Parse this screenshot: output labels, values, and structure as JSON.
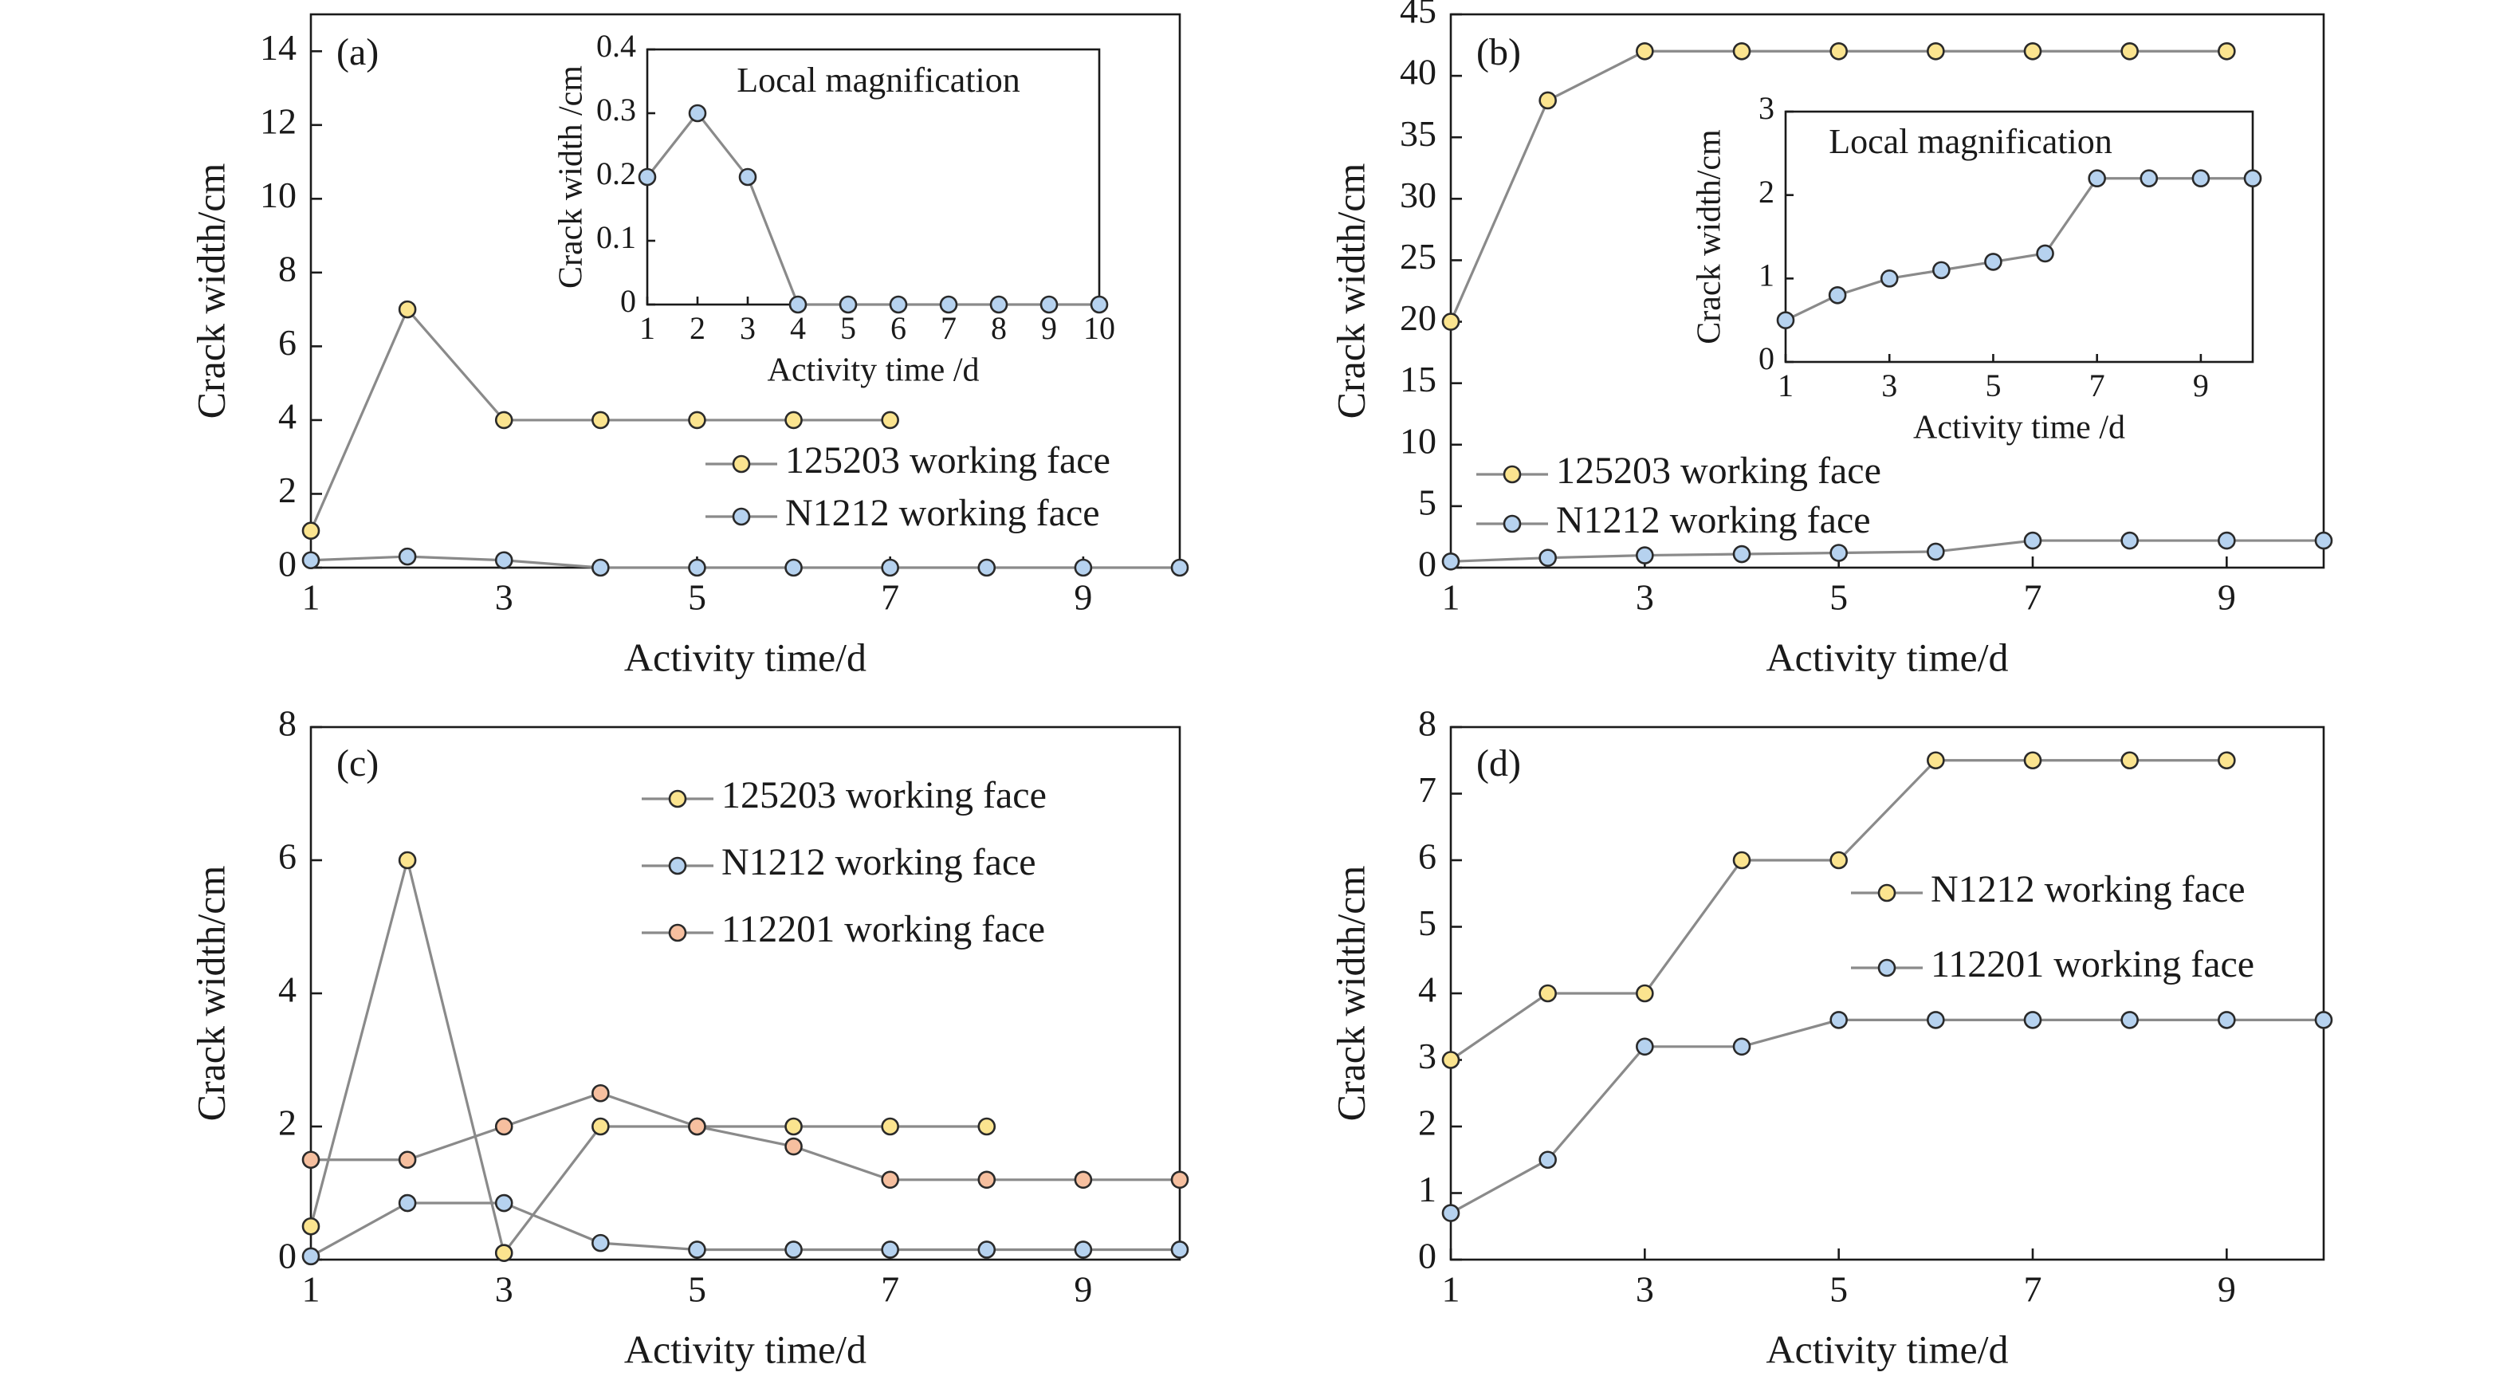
{
  "colors": {
    "yellow_marker": "#fbe48f",
    "blue_marker": "#b6d2ef",
    "orange_marker": "#f6bf9f",
    "line": "#8a8a8a",
    "axis": "#1a1a1a"
  },
  "chart_data": [
    {
      "panel": "(a)",
      "type": "line",
      "xlabel": "Activity time/d",
      "ylabel": "Crack width/cm",
      "xlim": [
        1,
        10
      ],
      "ylim": [
        0,
        15
      ],
      "xticks": [
        1,
        3,
        5,
        7,
        9
      ],
      "yticks": [
        0,
        2,
        4,
        6,
        8,
        10,
        12,
        14
      ],
      "legend_position": "lower-right",
      "series": [
        {
          "name": "125203 working face",
          "marker_color": "yellow",
          "x": [
            1,
            2,
            3,
            4,
            5,
            6,
            7
          ],
          "y": [
            1.0,
            7.0,
            4.0,
            4.0,
            4.0,
            4.0,
            4.0
          ]
        },
        {
          "name": "N1212 working face",
          "marker_color": "blue",
          "x": [
            1,
            2,
            3,
            4,
            5,
            6,
            7,
            8,
            9,
            10
          ],
          "y": [
            0.2,
            0.3,
            0.2,
            0,
            0,
            0,
            0,
            0,
            0,
            0
          ]
        }
      ],
      "inset": {
        "title": "Local magnification",
        "xlabel": "Activity time /d",
        "ylabel": "Crack width /cm",
        "xlim": [
          1,
          10
        ],
        "ylim": [
          0,
          0.4
        ],
        "xticks": [
          1,
          2,
          3,
          4,
          5,
          6,
          7,
          8,
          9,
          10
        ],
        "yticks": [
          0,
          0.1,
          0.2,
          0.3,
          0.4
        ],
        "series": [
          {
            "marker_color": "blue",
            "x": [
              1,
              2,
              3,
              4,
              5,
              6,
              7,
              8,
              9,
              10
            ],
            "y": [
              0.2,
              0.3,
              0.2,
              0,
              0,
              0,
              0,
              0,
              0,
              0
            ]
          }
        ]
      }
    },
    {
      "panel": "(b)",
      "type": "line",
      "xlabel": "Activity time/d",
      "ylabel": "Crack width/cm",
      "xlim": [
        1,
        10
      ],
      "ylim": [
        0,
        45
      ],
      "xticks": [
        1,
        3,
        5,
        7,
        9
      ],
      "yticks": [
        0,
        5,
        10,
        15,
        20,
        25,
        30,
        35,
        40,
        45
      ],
      "legend_position": "lower-left",
      "series": [
        {
          "name": "125203 working face",
          "marker_color": "yellow",
          "x": [
            1,
            2,
            3,
            4,
            5,
            6,
            7,
            8,
            9
          ],
          "y": [
            20,
            38,
            42,
            42,
            42,
            42,
            42,
            42,
            42
          ]
        },
        {
          "name": "N1212 working face",
          "marker_color": "blue",
          "x": [
            1,
            2,
            3,
            4,
            5,
            6,
            7,
            8,
            9,
            10
          ],
          "y": [
            0.5,
            0.8,
            1.0,
            1.1,
            1.2,
            1.3,
            2.2,
            2.2,
            2.2,
            2.2
          ]
        }
      ],
      "inset": {
        "title": "Local magnification",
        "xlabel": "Activity time /d",
        "ylabel": "Crack width/cm",
        "xlim": [
          1,
          10
        ],
        "ylim": [
          0,
          3
        ],
        "xticks": [
          1,
          3,
          5,
          7,
          9
        ],
        "yticks": [
          0,
          1,
          2,
          3
        ],
        "series": [
          {
            "marker_color": "blue",
            "x": [
              1,
              2,
              3,
              4,
              5,
              6,
              7,
              8,
              9,
              10
            ],
            "y": [
              0.5,
              0.8,
              1.0,
              1.1,
              1.2,
              1.3,
              2.2,
              2.2,
              2.2,
              2.2
            ]
          }
        ]
      }
    },
    {
      "panel": "(c)",
      "type": "line",
      "xlabel": "Activity time/d",
      "ylabel": "Crack width/cm",
      "xlim": [
        1,
        10
      ],
      "ylim": [
        0,
        8
      ],
      "xticks": [
        1,
        3,
        5,
        7,
        9
      ],
      "yticks": [
        0,
        2,
        4,
        6,
        8
      ],
      "legend_position": "top-right",
      "series": [
        {
          "name": "125203 working face",
          "marker_color": "yellow",
          "x": [
            1,
            2,
            3,
            4,
            5,
            6,
            7,
            8
          ],
          "y": [
            0.5,
            6.0,
            0.1,
            2.0,
            2.0,
            2.0,
            2.0,
            2.0
          ]
        },
        {
          "name": "N1212 working face",
          "marker_color": "blue",
          "x": [
            1,
            2,
            3,
            4,
            5,
            6,
            7,
            8,
            9,
            10
          ],
          "y": [
            0.05,
            0.85,
            0.85,
            0.25,
            0.15,
            0.15,
            0.15,
            0.15,
            0.15,
            0.15
          ]
        },
        {
          "name": "112201 working face",
          "marker_color": "orange",
          "x": [
            1,
            2,
            3,
            4,
            5,
            6,
            7,
            8,
            9,
            10
          ],
          "y": [
            1.5,
            1.5,
            2.0,
            2.5,
            2.0,
            1.7,
            1.2,
            1.2,
            1.2,
            1.2
          ]
        }
      ]
    },
    {
      "panel": "(d)",
      "type": "line",
      "xlabel": "Activity time/d",
      "ylabel": "Crack width/cm",
      "xlim": [
        1,
        10
      ],
      "ylim": [
        0,
        8
      ],
      "xticks": [
        1,
        3,
        5,
        7,
        9
      ],
      "yticks": [
        0,
        1,
        2,
        3,
        4,
        5,
        6,
        7,
        8
      ],
      "legend_position": "right",
      "series": [
        {
          "name": "N1212 working face",
          "marker_color": "yellow",
          "x": [
            1,
            2,
            3,
            4,
            5,
            6,
            7,
            8,
            9
          ],
          "y": [
            3.0,
            4.0,
            4.0,
            6.0,
            6.0,
            7.5,
            7.5,
            7.5,
            7.5
          ]
        },
        {
          "name": "112201 working face",
          "marker_color": "blue",
          "x": [
            1,
            2,
            3,
            4,
            5,
            6,
            7,
            8,
            9,
            10
          ],
          "y": [
            0.7,
            1.5,
            3.2,
            3.2,
            3.6,
            3.6,
            3.6,
            3.6,
            3.6,
            3.6
          ]
        }
      ]
    }
  ]
}
